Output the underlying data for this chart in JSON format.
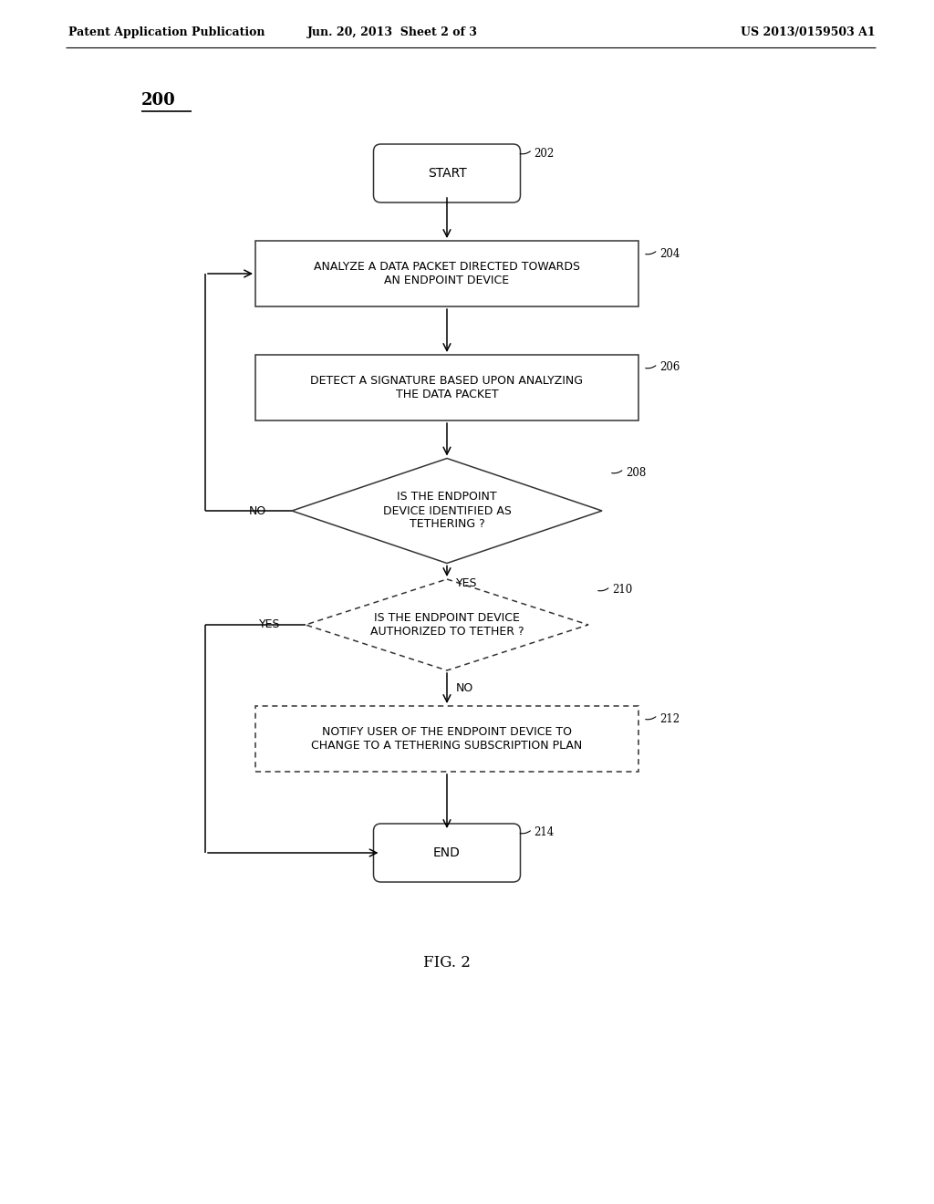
{
  "bg_color": "#ffffff",
  "header_left": "Patent Application Publication",
  "header_mid": "Jun. 20, 2013  Sheet 2 of 3",
  "header_right": "US 2013/0159503 A1",
  "diagram_label": "200",
  "fig_label": "FIG. 2",
  "font_size_node": 9,
  "font_size_header": 9,
  "font_size_ref": 8.5,
  "font_size_label": 13,
  "font_size_fig": 12,
  "start_label": "START",
  "end_label": "END",
  "ref_start": "202",
  "ref_204": "204",
  "ref_206": "206",
  "ref_208": "208",
  "ref_210": "210",
  "ref_212": "212",
  "ref_end": "214",
  "label_204": "ANALYZE A DATA PACKET DIRECTED TOWARDS\nAN ENDPOINT DEVICE",
  "label_206": "DETECT A SIGNATURE BASED UPON ANALYZING\nTHE DATA PACKET",
  "label_208": "IS THE ENDPOINT\nDEVICE IDENTIFIED AS\nTETHERING ?",
  "label_210": "IS THE ENDPOINT DEVICE\nAUTHORIZED TO TETHER ?",
  "label_212": "NOTIFY USER OF THE ENDPOINT DEVICE TO\nCHANGE TO A TETHERING SUBSCRIPTION PLAN",
  "yes_label": "YES",
  "no_label": "NO"
}
